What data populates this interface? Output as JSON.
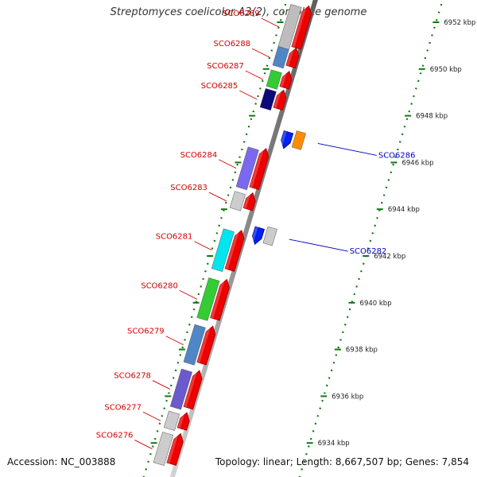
{
  "title": "Streptomyces coelicolor A3(2), complete genome",
  "footer": {
    "accession": "Accession: NC_003888",
    "summary": "Topology: linear; Length: 8,667,507 bp; Genes: 7,854"
  },
  "colors": {
    "forward_label": "#d40000",
    "reverse_label": "#0000bb",
    "forward_arrow": "#ee0000",
    "reverse_arrow": "#0022ee",
    "backbone": "#8c8c8c",
    "tick": "#117711"
  },
  "ticks": [
    "6934 kbp",
    "6936 kbp",
    "6938 kbp",
    "6940 kbp",
    "6942 kbp",
    "6944 kbp",
    "6946 kbp",
    "6948 kbp",
    "6950 kbp",
    "6952 kbp"
  ],
  "forward_genes": [
    {
      "id": "SCO6289",
      "kb_start": 6950.9,
      "kb_end": 6952.7,
      "color": "#bdbdbd"
    },
    {
      "id": "SCO6288",
      "kb_start": 6950.1,
      "kb_end": 6950.9,
      "color": "#4f86c6"
    },
    {
      "id": "SCO6287",
      "kb_start": 6949.2,
      "kb_end": 6949.9,
      "color": "#33cc33"
    },
    {
      "id": "SCO6285",
      "kb_start": 6948.3,
      "kb_end": 6949.1,
      "color": "#0a0a7a"
    },
    {
      "id": "SCO6284",
      "kb_start": 6944.9,
      "kb_end": 6946.6,
      "color": "#7b68ee"
    },
    {
      "id": "SCO6283",
      "kb_start": 6944.0,
      "kb_end": 6944.7,
      "color": "#cccccc"
    },
    {
      "id": "SCO6281",
      "kb_start": 6941.4,
      "kb_end": 6943.1,
      "color": "#00e5ee"
    },
    {
      "id": "SCO6280",
      "kb_start": 6939.3,
      "kb_end": 6941.0,
      "color": "#33cc33"
    },
    {
      "id": "SCO6279",
      "kb_start": 6937.4,
      "kb_end": 6939.0,
      "color": "#4f86c6"
    },
    {
      "id": "SCO6278",
      "kb_start": 6935.5,
      "kb_end": 6937.1,
      "color": "#6a5acd"
    },
    {
      "id": "SCO6277",
      "kb_start": 6934.6,
      "kb_end": 6935.3,
      "color": "#cccccc"
    },
    {
      "id": "SCO6276",
      "kb_start": 6933.1,
      "kb_end": 6934.4,
      "color": "#cccccc"
    }
  ],
  "reverse_genes": [
    {
      "id": "SCO6286",
      "kb_start": 6946.6,
      "kb_end": 6947.3,
      "color": "#ff8c00"
    },
    {
      "id": "SCO6282",
      "kb_start": 6942.5,
      "kb_end": 6943.2,
      "color": "#cccccc"
    }
  ]
}
